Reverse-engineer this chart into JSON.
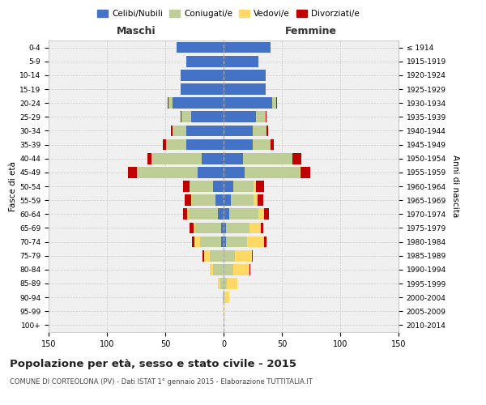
{
  "age_groups": [
    "0-4",
    "5-9",
    "10-14",
    "15-19",
    "20-24",
    "25-29",
    "30-34",
    "35-39",
    "40-44",
    "45-49",
    "50-54",
    "55-59",
    "60-64",
    "65-69",
    "70-74",
    "75-79",
    "80-84",
    "85-89",
    "90-94",
    "95-99",
    "100+"
  ],
  "birth_years": [
    "2010-2014",
    "2005-2009",
    "2000-2004",
    "1995-1999",
    "1990-1994",
    "1985-1989",
    "1980-1984",
    "1975-1979",
    "1970-1974",
    "1965-1969",
    "1960-1964",
    "1955-1959",
    "1950-1954",
    "1945-1949",
    "1940-1944",
    "1935-1939",
    "1930-1934",
    "1925-1929",
    "1920-1924",
    "1915-1919",
    "≤ 1914"
  ],
  "male": {
    "celibi": [
      40,
      32,
      37,
      37,
      44,
      28,
      32,
      32,
      19,
      22,
      9,
      7,
      5,
      2,
      2,
      0,
      0,
      0,
      0,
      0,
      0
    ],
    "coniugati": [
      0,
      0,
      0,
      0,
      3,
      8,
      12,
      17,
      43,
      52,
      20,
      20,
      25,
      22,
      18,
      12,
      9,
      3,
      1,
      0,
      0
    ],
    "vedovi": [
      0,
      0,
      0,
      0,
      0,
      0,
      0,
      0,
      0,
      0,
      0,
      1,
      1,
      2,
      5,
      5,
      3,
      2,
      0,
      0,
      0
    ],
    "divorziati": [
      0,
      0,
      0,
      0,
      1,
      1,
      1,
      3,
      3,
      8,
      6,
      5,
      4,
      3,
      2,
      1,
      0,
      0,
      0,
      0,
      0
    ]
  },
  "female": {
    "nubili": [
      40,
      30,
      36,
      36,
      42,
      28,
      25,
      25,
      17,
      18,
      8,
      6,
      5,
      2,
      2,
      0,
      0,
      0,
      0,
      0,
      0
    ],
    "coniugate": [
      0,
      0,
      0,
      0,
      3,
      8,
      12,
      15,
      42,
      47,
      18,
      20,
      25,
      20,
      18,
      10,
      8,
      3,
      1,
      0,
      0
    ],
    "vedove": [
      0,
      0,
      0,
      0,
      0,
      0,
      0,
      0,
      0,
      1,
      2,
      3,
      5,
      10,
      15,
      14,
      14,
      9,
      4,
      1,
      0
    ],
    "divorziate": [
      0,
      0,
      0,
      0,
      1,
      1,
      1,
      3,
      8,
      8,
      7,
      5,
      4,
      2,
      2,
      1,
      1,
      0,
      0,
      0,
      0
    ]
  },
  "colors": {
    "celibi_nubili": "#4472C4",
    "coniugati": "#BFCE96",
    "vedovi": "#FFD966",
    "divorziati": "#C00000"
  },
  "xlim": 150,
  "title": "Popolazione per età, sesso e stato civile - 2015",
  "subtitle": "COMUNE DI CORTEOLONA (PV) - Dati ISTAT 1° gennaio 2015 - Elaborazione TUTTITALIA.IT",
  "ylabel_left": "Fasce di età",
  "ylabel_right": "Anni di nascita",
  "xlabel_left": "Maschi",
  "xlabel_right": "Femmine",
  "legend_labels": [
    "Celibi/Nubili",
    "Coniugati/e",
    "Vedovi/e",
    "Divorziati/e"
  ],
  "background_color": "#f0f0f0",
  "grid_color": "#cccccc"
}
